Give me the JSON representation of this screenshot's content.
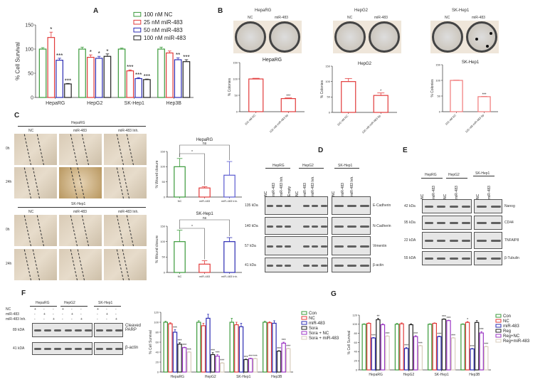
{
  "panels": {
    "A": "A",
    "B": "B",
    "C": "C",
    "D": "D",
    "E": "E",
    "F": "F",
    "G": "G"
  },
  "colors": {
    "green": "#3a9a3a",
    "red": "#e23a3a",
    "blue": "#2b2bb3",
    "black": "#222222",
    "purple": "#9b35c4",
    "beige": "#d8cdbd"
  },
  "panel_b": {
    "cells": [
      "HepaRG",
      "HepG2",
      "SK-Hep1"
    ],
    "nc": "NC",
    "mir": "miR-483"
  },
  "panel_c": {
    "groups": [
      "HepaRG",
      "SK-Hep1"
    ],
    "cols": [
      "NC",
      "miR-483",
      "miR-483 Inh."
    ],
    "rows": [
      "0h",
      "24h"
    ]
  },
  "panel_d": {
    "groups": [
      "HepRG",
      "HepG2",
      "SK-Hep1"
    ],
    "lanes_left": [
      "NC",
      "miR-483",
      "miR-483 Inh.",
      "Empty",
      "NC",
      "miR-483",
      "miR-483 Inh."
    ],
    "lanes_right": [
      "NC",
      "miR-483",
      "miR-483 Inh."
    ],
    "markers": [
      "135 kDa",
      "140 kDa",
      "57 kDa",
      "41 kDa"
    ],
    "proteins": [
      "E-Cadherin",
      "N-Cadherin",
      "Vimentin",
      "β-actin"
    ]
  },
  "panel_e": {
    "groups": [
      "HepRG",
      "HepG2",
      "SK-Hep1"
    ],
    "lanes_left": [
      "NC",
      "miR-483",
      "NC",
      "miR-483"
    ],
    "lanes_right": [
      "NC",
      "miR-483"
    ],
    "markers": [
      "42 kDa",
      "95 kDa",
      "22 kDA",
      "55 kDA"
    ],
    "proteins": [
      "Nanog",
      "CD44",
      "TNFAIP8",
      "β-Tubulin"
    ]
  },
  "panel_f_blot": {
    "groups": [
      "HepaRG",
      "HepG2",
      "SK-Hep1"
    ],
    "rows": [
      "NC",
      "miR-483",
      "miR-483 Inh."
    ],
    "signs": [
      [
        "+",
        "-",
        "-",
        "+",
        "-",
        "-",
        "+",
        "-",
        "-"
      ],
      [
        "-",
        "+",
        "-",
        "-",
        "+",
        "-",
        "-",
        "+",
        "-"
      ],
      [
        "-",
        "-",
        "+",
        "-",
        "-",
        "+",
        "-",
        "-",
        "+"
      ]
    ],
    "markers": [
      "89 kDA",
      "41 kDA"
    ],
    "proteins": [
      "Cleaved PARP",
      "β-actin"
    ]
  },
  "chart_data": [
    {
      "id": "A",
      "type": "bar",
      "title": "",
      "ylabel": "% Cell Survival",
      "ylim": [
        0,
        150
      ],
      "yticks": [
        0,
        50,
        100,
        150
      ],
      "categories": [
        "HepaRG",
        "HepG2",
        "SK-Hep1",
        "Hep3B"
      ],
      "legend": "top-right",
      "series": [
        {
          "name": "100 nM NC",
          "color": "#3a9a3a",
          "values": [
            100,
            100,
            100,
            100
          ],
          "errors": [
            3,
            4,
            2,
            4
          ],
          "sig": [
            "",
            "",
            "",
            ""
          ]
        },
        {
          "name": "25 nM miR-483",
          "color": "#e23a3a",
          "values": [
            124,
            83,
            55,
            92
          ],
          "errors": [
            11,
            5,
            2,
            4
          ],
          "sig": [
            "*",
            "*",
            "***",
            ""
          ]
        },
        {
          "name": "50 nM miR-483",
          "color": "#2b2bb3",
          "values": [
            77,
            81,
            39,
            78
          ],
          "errors": [
            4,
            4,
            2,
            4
          ],
          "sig": [
            "***",
            "*",
            "***",
            "**"
          ]
        },
        {
          "name": "100 nM miR-483",
          "color": "#222222",
          "values": [
            28,
            85,
            37,
            74
          ],
          "errors": [
            1,
            5,
            1,
            4
          ],
          "sig": [
            "***",
            "*",
            "***",
            "***"
          ]
        }
      ]
    },
    {
      "id": "B1",
      "type": "bar",
      "title": "HepaRG",
      "ylabel": "% Colonies",
      "ylim": [
        0,
        150
      ],
      "yticks": [
        0,
        50,
        100,
        150
      ],
      "categories": [
        "100 nM NC",
        "100 nM miR-483-5p"
      ],
      "series": [
        {
          "color": "#e23a3a",
          "values": [
            100,
            40
          ],
          "errors": [
            2,
            2
          ],
          "sig": [
            "",
            "***"
          ]
        }
      ]
    },
    {
      "id": "B2",
      "type": "bar",
      "title": "HepG2",
      "ylabel": "% Colonies",
      "ylim": [
        0,
        150
      ],
      "yticks": [
        0,
        50,
        100,
        150
      ],
      "categories": [
        "100 nM NC",
        "100 nM miR-483-5p"
      ],
      "series": [
        {
          "color": "#e23a3a",
          "values": [
            100,
            55
          ],
          "errors": [
            10,
            8
          ],
          "sig": [
            "",
            "*"
          ]
        }
      ]
    },
    {
      "id": "B3",
      "type": "bar",
      "title": "SK-Hep1",
      "ylabel": "% Colonies",
      "ylim": [
        0,
        150
      ],
      "yticks": [
        0,
        50,
        100,
        150
      ],
      "categories": [
        "100 nM NC",
        "100 nM miR-483-5p"
      ],
      "series": [
        {
          "color": "#f07878",
          "values": [
            100,
            48
          ],
          "errors": [
            1,
            1
          ],
          "sig": [
            "",
            "***"
          ]
        }
      ]
    },
    {
      "id": "C1",
      "type": "bar",
      "title": "HepaRG",
      "ylabel": "% Wound closure",
      "ylim": [
        0,
        150
      ],
      "yticks": [
        0,
        50,
        100,
        150
      ],
      "categories": [
        "NC",
        "miR-483",
        "miR-483 Inh."
      ],
      "colors_per_bar": [
        "#3a9a3a",
        "#e23a3a",
        "#5a5ad0"
      ],
      "series": [
        {
          "values": [
            100,
            30,
            72
          ],
          "errors": [
            27,
            4,
            45
          ],
          "sig": [
            "",
            "",
            ""
          ]
        }
      ],
      "brackets": [
        {
          "from": 0,
          "to": 1,
          "label": "*"
        },
        {
          "from": 0,
          "to": 2,
          "label": "ns"
        }
      ]
    },
    {
      "id": "C2",
      "type": "bar",
      "title": "SK-Hep1",
      "ylabel": "% Wound closure",
      "ylim": [
        0,
        150
      ],
      "yticks": [
        0,
        50,
        100,
        150
      ],
      "categories": [
        "NC",
        "miR-483",
        "miR-483 Inh."
      ],
      "colors_per_bar": [
        "#3a9a3a",
        "#e23a3a",
        "#2b2bb3"
      ],
      "series": [
        {
          "values": [
            100,
            27,
            100
          ],
          "errors": [
            37,
            11,
            13
          ],
          "sig": [
            "",
            "",
            ""
          ]
        }
      ],
      "brackets": [
        {
          "from": 0,
          "to": 1,
          "label": "*"
        },
        {
          "from": 0,
          "to": 2,
          "label": "ns"
        }
      ]
    },
    {
      "id": "F",
      "type": "bar",
      "title": "",
      "ylabel": "% Cell Survival",
      "ylim": [
        0,
        120
      ],
      "yticks": [
        0,
        20,
        40,
        60,
        80,
        100,
        120
      ],
      "categories": [
        "HepaRG",
        "HepG2",
        "SK-Hep1",
        "Hep3B"
      ],
      "legend": "right",
      "series": [
        {
          "name": "Con",
          "color": "#3a9a3a",
          "values": [
            100,
            100,
            100,
            100
          ],
          "errors": [
            2,
            3,
            8,
            2
          ],
          "sig": [
            "",
            "",
            "",
            ""
          ]
        },
        {
          "name": "NC",
          "color": "#e23a3a",
          "values": [
            97,
            93,
            95,
            99
          ],
          "errors": [
            2,
            5,
            5,
            2
          ],
          "sig": [
            "",
            "",
            "",
            ""
          ]
        },
        {
          "name": "miR-483",
          "color": "#2b2bb3",
          "values": [
            80,
            108,
            91,
            98
          ],
          "errors": [
            5,
            8,
            7,
            5
          ],
          "sig": [
            "***",
            "",
            "",
            ""
          ]
        },
        {
          "name": "Sora",
          "color": "#222222",
          "values": [
            56,
            35,
            25,
            42
          ],
          "errors": [
            3,
            4,
            1,
            1
          ],
          "sig": [
            "***",
            "***",
            "***",
            "***"
          ]
        },
        {
          "name": "Sora + NC",
          "color": "#9b35c4",
          "values": [
            49,
            32,
            27,
            58
          ],
          "errors": [
            1,
            3,
            1,
            2
          ],
          "sig": [
            "***",
            "***",
            "***",
            "***"
          ]
        },
        {
          "name": "Sora + miR-483",
          "color": "#d8cdbd",
          "values": [
            40,
            18,
            27,
            47
          ],
          "errors": [
            1,
            1,
            1,
            1
          ],
          "sig": [
            "***",
            "***",
            "***",
            "***"
          ]
        }
      ]
    },
    {
      "id": "G",
      "type": "bar",
      "title": "",
      "ylabel": "% Cell Survival",
      "ylim": [
        0,
        120
      ],
      "yticks": [
        0,
        20,
        40,
        60,
        80,
        100,
        120
      ],
      "categories": [
        "HepaRG",
        "HepG2",
        "SK-Hep1",
        "Hep3B"
      ],
      "legend": "right",
      "series": [
        {
          "name": "Con",
          "color": "#3a9a3a",
          "values": [
            100,
            100,
            100,
            100
          ],
          "errors": [
            1,
            2,
            1,
            1
          ],
          "sig": [
            "",
            "",
            "",
            ""
          ]
        },
        {
          "name": "NC",
          "color": "#e23a3a",
          "values": [
            102,
            101,
            102,
            104
          ],
          "errors": [
            1,
            2,
            1,
            2
          ],
          "sig": [
            "",
            "",
            "",
            "*"
          ]
        },
        {
          "name": "miR-483",
          "color": "#2b2bb3",
          "values": [
            70,
            47,
            73,
            46
          ],
          "errors": [
            1,
            2,
            1,
            1
          ],
          "sig": [
            "***",
            "***",
            "***",
            "***"
          ]
        },
        {
          "name": "Reg",
          "color": "#222222",
          "values": [
            110,
            99,
            111,
            104
          ],
          "errors": [
            3,
            2,
            1,
            4
          ],
          "sig": [
            "**",
            "",
            "***",
            ""
          ]
        },
        {
          "name": "Reg+NC",
          "color": "#9b35c4",
          "values": [
            99,
            73,
            108,
            81
          ],
          "errors": [
            2,
            2,
            1,
            3
          ],
          "sig": [
            "",
            "***",
            "***",
            "***"
          ]
        },
        {
          "name": "Reg+miR-483",
          "color": "#d8cdbd",
          "values": [
            74,
            53,
            70,
            51
          ],
          "errors": [
            1,
            1,
            1,
            1
          ],
          "sig": [
            "***",
            "***",
            "***",
            "***"
          ]
        }
      ]
    }
  ]
}
